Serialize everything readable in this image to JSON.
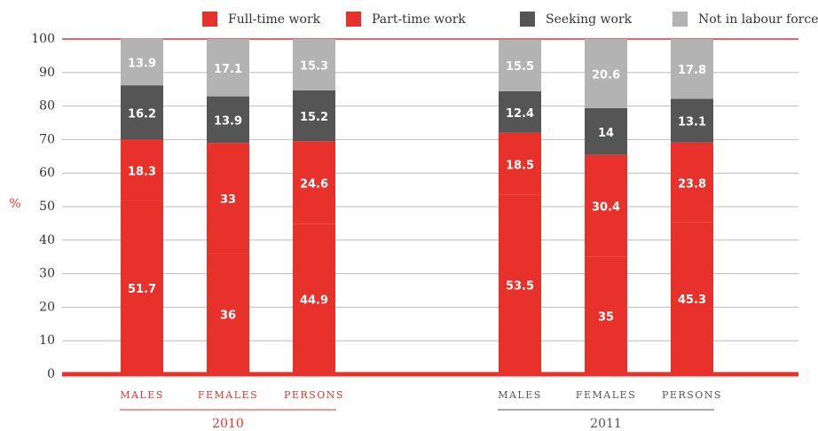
{
  "chart_data": {
    "type": "stacked_bar",
    "y_label": "%",
    "categories": [
      "MALES",
      "FEMALES",
      "PERSONS",
      "MALES",
      "FEMALES",
      "PERSONS"
    ],
    "groups": [
      "2010",
      "2011"
    ],
    "group_colors": [
      "#e8312a",
      "#555555"
    ],
    "series": [
      {
        "name": "Full-time work",
        "color": "#e8312a",
        "values": [
          51.7,
          36,
          44.9,
          53.5,
          35,
          45.3
        ]
      },
      {
        "name": "Part-time work",
        "color": "#e8312a",
        "values": [
          18.3,
          33,
          24.6,
          18.5,
          30.4,
          23.8
        ]
      },
      {
        "name": "Seeking work",
        "color": "#555555",
        "values": [
          16.2,
          13.9,
          15.2,
          12.4,
          14,
          13.1
        ]
      },
      {
        "name": "Not in labour force",
        "color": "#b3b3b3",
        "values": [
          13.9,
          17.1,
          15.3,
          15.5,
          20.6,
          17.8
        ]
      }
    ],
    "ylim": [
      0,
      100
    ],
    "yticks": [
      0,
      10,
      20,
      30,
      40,
      50,
      60,
      70,
      80,
      90,
      100
    ],
    "grid": true
  }
}
